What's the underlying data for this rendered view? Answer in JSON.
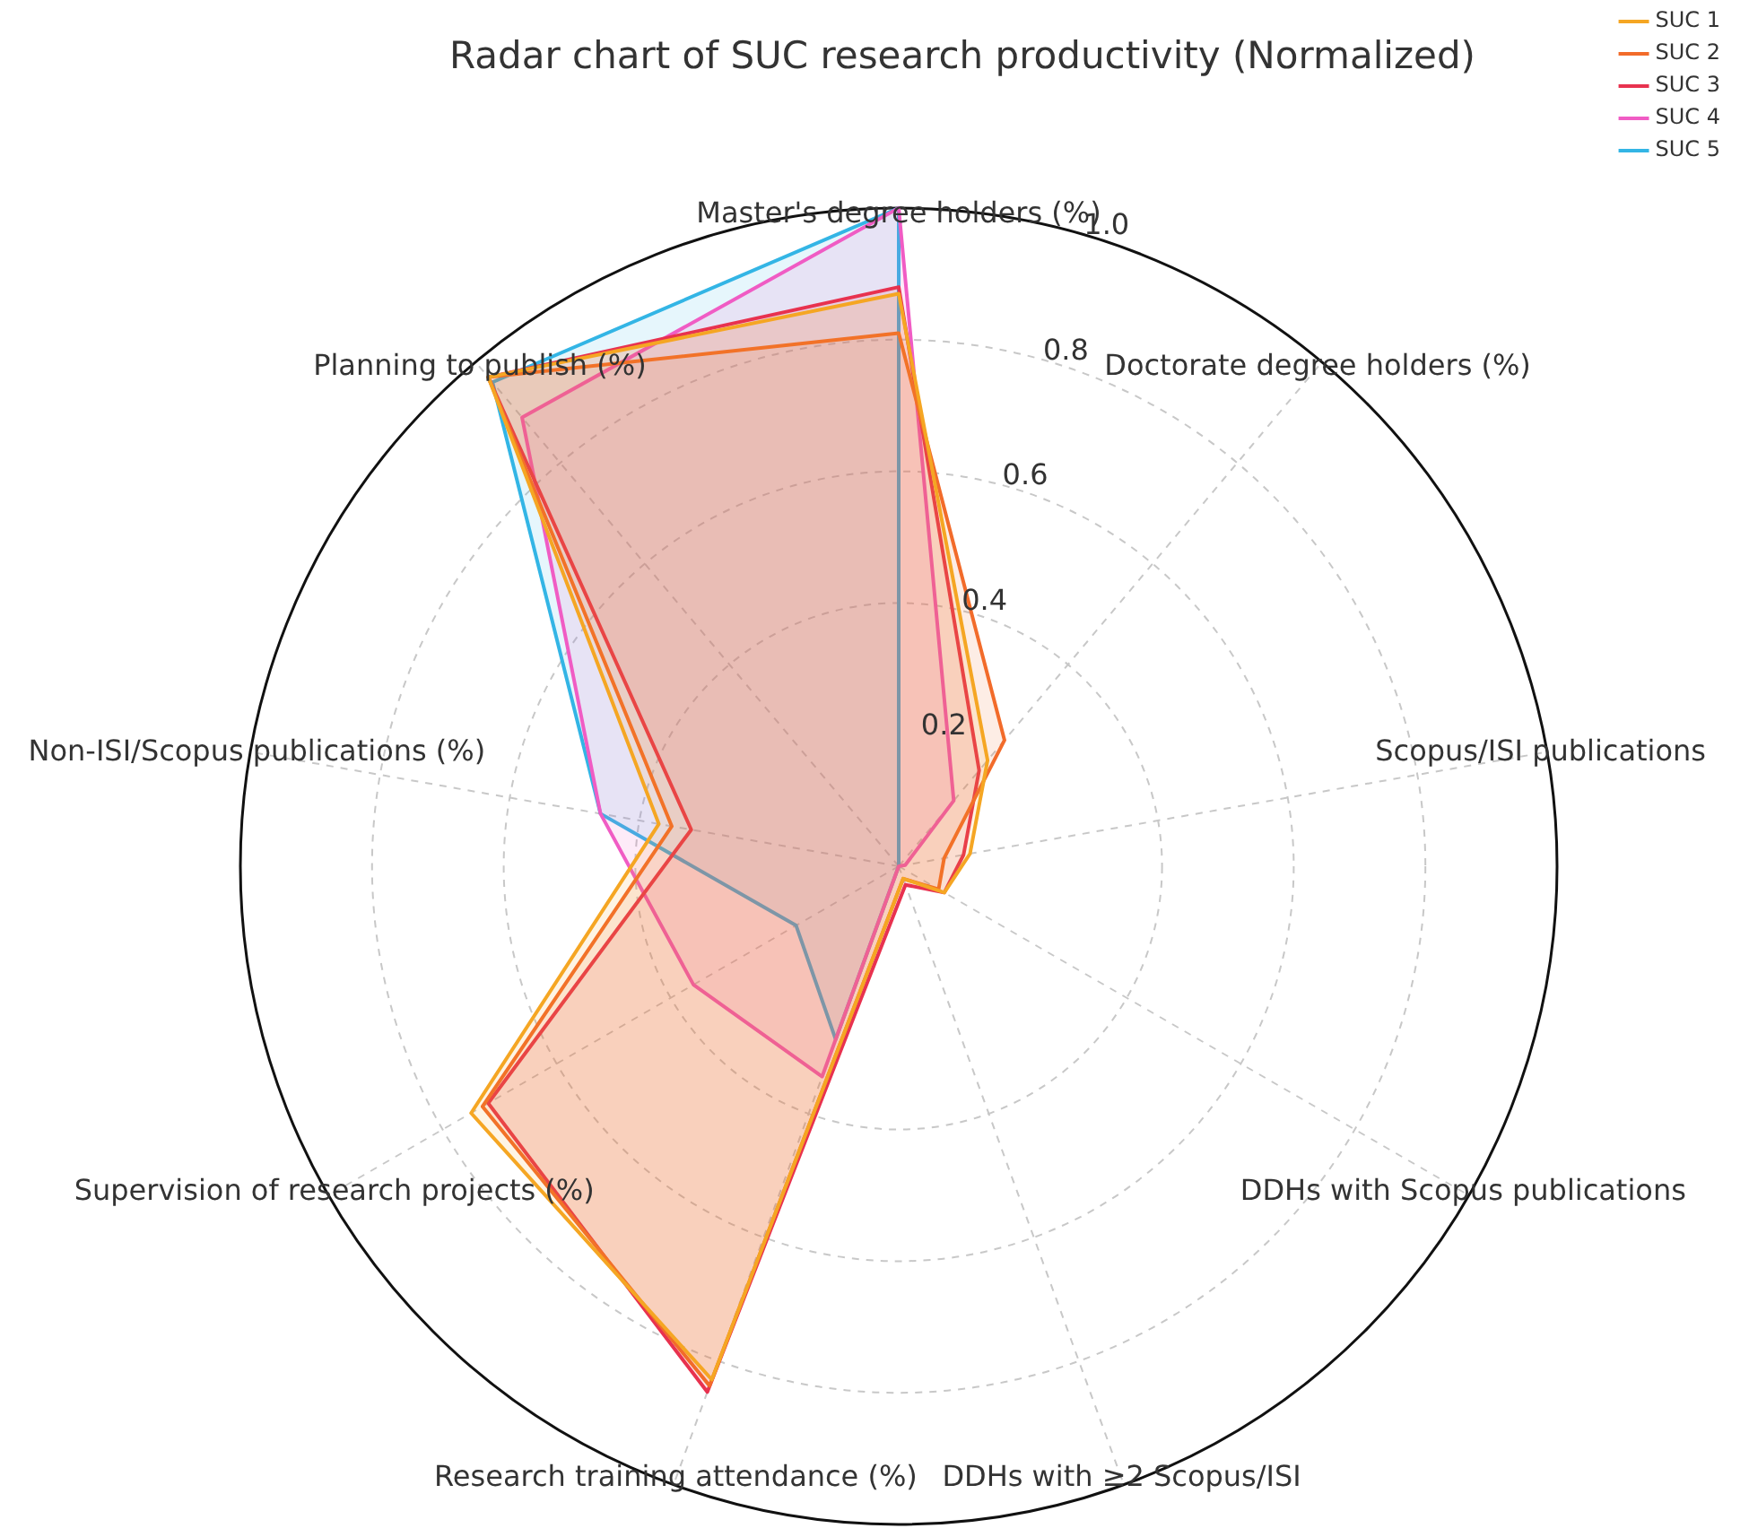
{
  "chart_data": {
    "type": "radar",
    "title": "Radar chart of SUC research productivity (Normalized)",
    "categories": [
      "Master's degree holders (%)",
      "Doctorate degree holders (%)",
      "Scopus/ISI publications",
      "DDHs with Scopus publications",
      "DDHs with ≥2 Scopus/ISI",
      "Research training attendance (%)",
      "Supervision of research projects (%)",
      "Non-ISI/Scopus publications (%)",
      "Planning to publish (%)"
    ],
    "series": [
      {
        "name": "SUC 1",
        "color": "#f5a623",
        "values": [
          0.87,
          0.21,
          0.11,
          0.08,
          0.02,
          0.83,
          0.75,
          0.37,
          0.97
        ]
      },
      {
        "name": "SUC 2",
        "color": "#f26b2a",
        "values": [
          0.81,
          0.25,
          0.07,
          0.07,
          0.02,
          0.84,
          0.73,
          0.35,
          0.97
        ]
      },
      {
        "name": "SUC 3",
        "color": "#e8324f",
        "values": [
          0.88,
          0.19,
          0.1,
          0.08,
          0.03,
          0.85,
          0.72,
          0.32,
          0.97
        ]
      },
      {
        "name": "SUC 4",
        "color": "#f05cc4",
        "values": [
          1.0,
          0.13,
          0.01,
          0,
          0,
          0.34,
          0.36,
          0.46,
          0.89
        ]
      },
      {
        "name": "SUC 5",
        "color": "#33b5e5",
        "values": [
          1.0,
          0,
          0,
          0,
          0,
          0.28,
          0.18,
          0.46,
          0.96
        ]
      }
    ],
    "ylim": [
      0,
      1
    ],
    "yticks": [
      0.2,
      0.4,
      0.6,
      0.8,
      {
        "value": 1,
        "label": "1.0"
      }
    ],
    "grid": true,
    "legend": "top right"
  }
}
